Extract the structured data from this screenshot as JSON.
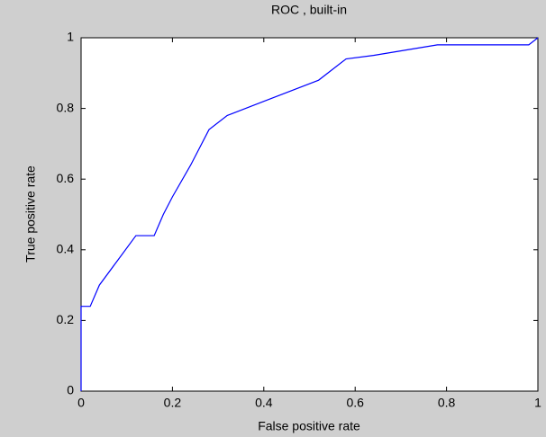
{
  "chart_data": {
    "type": "line",
    "title": "ROC , built-in",
    "x_label": "False positive rate",
    "y_label": "True positive rate",
    "x": [
      0,
      0,
      0.02,
      0.04,
      0.08,
      0.12,
      0.16,
      0.18,
      0.2,
      0.24,
      0.28,
      0.32,
      0.4,
      0.52,
      0.58,
      0.64,
      0.78,
      0.98,
      1
    ],
    "values": [
      0,
      0.24,
      0.24,
      0.3,
      0.37,
      0.44,
      0.44,
      0.5,
      0.55,
      0.64,
      0.74,
      0.78,
      0.82,
      0.88,
      0.94,
      0.95,
      0.98,
      0.98,
      1
    ],
    "color": "#0000ff",
    "xlim": [
      0,
      1
    ],
    "xticks": [
      0,
      0.2,
      0.4,
      0.6,
      0.8,
      1
    ],
    "ylim": [
      0,
      1
    ],
    "yticks": [
      0,
      0.2,
      0.4,
      0.6,
      0.8,
      1
    ],
    "grid": false
  }
}
